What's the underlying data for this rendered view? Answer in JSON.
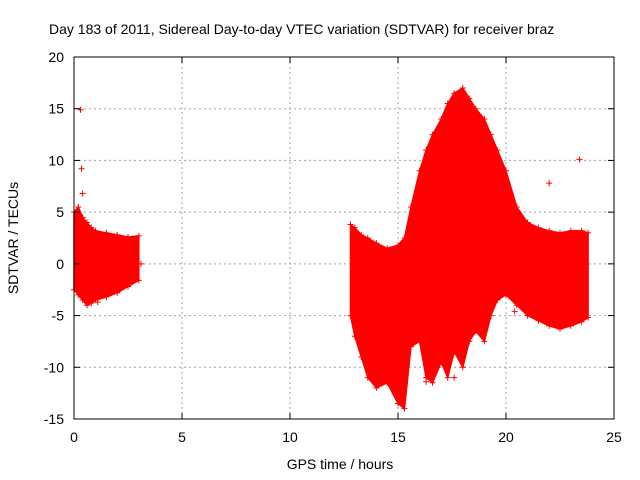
{
  "chart_data": {
    "type": "scatter",
    "title": "Day 183 of 2011, Sidereal Day-to-day VTEC variation (SDTVAR) for receiver braz",
    "xlabel": "GPS time / hours",
    "ylabel": "SDTVAR / TECUs",
    "xlim": [
      0,
      25
    ],
    "ylim": [
      -15,
      20
    ],
    "xticks": [
      "0",
      "5",
      "10",
      "15",
      "20",
      "25"
    ],
    "yticks": [
      "-15",
      "-10",
      "-5",
      "0",
      "5",
      "10",
      "15",
      "20"
    ],
    "grid": true,
    "marker": "plus",
    "color": "#ff0000",
    "series": [
      {
        "segments": [
          {
            "x": [
              0.0,
              0.2,
              0.4,
              0.6,
              0.8,
              1.0,
              1.5,
              2.0,
              2.5,
              3.0
            ],
            "upper": [
              5.0,
              5.5,
              4.5,
              4.0,
              3.5,
              3.2,
              3.0,
              2.8,
              2.6,
              2.7
            ],
            "lower": [
              -2.5,
              -3.0,
              -3.5,
              -4.0,
              -3.8,
              -3.5,
              -3.2,
              -2.8,
              -2.2,
              -1.6
            ]
          },
          {
            "x": [
              12.8,
              13.0,
              13.3,
              13.6,
              14.0,
              14.5,
              15.0,
              15.3,
              15.6,
              16.0,
              16.3,
              16.6,
              17.0,
              17.3,
              17.6,
              18.0,
              18.3,
              18.6,
              19.0,
              19.3,
              19.6,
              20.0,
              20.5,
              21.0,
              21.5,
              22.0,
              22.5,
              23.0,
              23.5,
              23.8
            ],
            "upper": [
              3.8,
              3.5,
              2.8,
              2.5,
              2.0,
              1.5,
              1.8,
              2.5,
              5.5,
              9.0,
              11.0,
              12.5,
              14.0,
              15.5,
              16.5,
              17.0,
              16.0,
              15.0,
              14.0,
              12.5,
              11.0,
              9.0,
              5.5,
              4.0,
              3.5,
              3.2,
              3.0,
              3.2,
              3.2,
              3.0
            ],
            "lower": [
              -5.0,
              -7.0,
              -9.0,
              -11.0,
              -12.0,
              -11.5,
              -13.5,
              -14.0,
              -8.0,
              -7.5,
              -11.0,
              -11.5,
              -9.5,
              -11.0,
              -8.5,
              -10.0,
              -7.5,
              -6.5,
              -7.5,
              -5.0,
              -3.5,
              -3.0,
              -4.0,
              -5.0,
              -5.5,
              -6.0,
              -6.3,
              -6.0,
              -5.6,
              -5.2
            ]
          }
        ],
        "outliers": [
          {
            "x": 0.3,
            "y": 14.9
          },
          {
            "x": 0.35,
            "y": 9.2
          },
          {
            "x": 0.4,
            "y": 6.8
          },
          {
            "x": 1.1,
            "y": -3.7
          },
          {
            "x": 3.1,
            "y": 0.0
          },
          {
            "x": 14.4,
            "y": -10.6
          },
          {
            "x": 16.3,
            "y": -11.4
          },
          {
            "x": 17.6,
            "y": -11.0
          },
          {
            "x": 20.4,
            "y": -4.6
          },
          {
            "x": 22.0,
            "y": 7.8
          },
          {
            "x": 23.4,
            "y": 10.1
          }
        ]
      }
    ]
  }
}
